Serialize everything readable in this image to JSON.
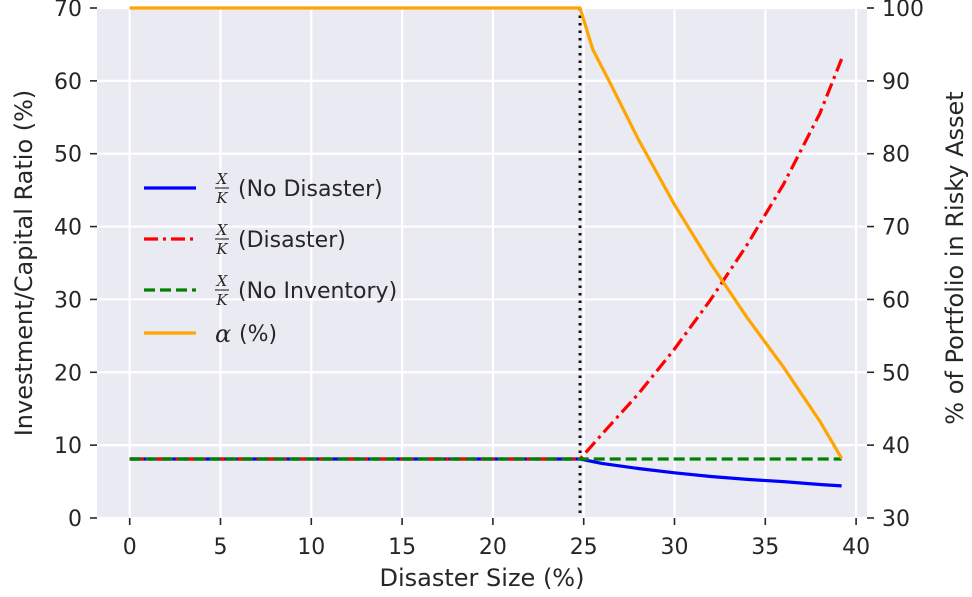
{
  "chart_data": {
    "type": "line",
    "xlabel": "Disaster Size (%)",
    "ylabel_left": "Investment/Capital Ratio (%)",
    "ylabel_right": "% of Portfolio in Risky Asset",
    "xlim": [
      -1.8,
      40.6
    ],
    "ylim_left": [
      0,
      70
    ],
    "ylim_right": [
      30,
      100
    ],
    "xticks": [
      0,
      5,
      10,
      15,
      20,
      25,
      30,
      35,
      40
    ],
    "yticks_left": [
      0,
      10,
      20,
      30,
      40,
      50,
      60,
      70
    ],
    "yticks_right": [
      30,
      40,
      50,
      60,
      70,
      80,
      90,
      100
    ],
    "grid": true,
    "legend_position": "center-left",
    "vline_x": 24.8,
    "series": [
      {
        "legend_fraction": [
          "X",
          "K"
        ],
        "name": "(No Disaster)",
        "axis": "left",
        "color": "#0000ff",
        "style": "solid",
        "x": [
          0,
          5,
          10,
          15,
          20,
          24.8,
          26,
          28,
          30,
          32,
          34,
          36,
          38,
          39.2
        ],
        "y": [
          8.1,
          8.1,
          8.1,
          8.1,
          8.1,
          8.1,
          7.5,
          6.8,
          6.2,
          5.7,
          5.3,
          5.0,
          4.6,
          4.4
        ]
      },
      {
        "legend_fraction": [
          "X",
          "K"
        ],
        "name": "(Disaster)",
        "axis": "left",
        "color": "#ff0000",
        "style": "dashdot",
        "x": [
          0,
          5,
          10,
          15,
          20,
          24.8,
          26,
          28,
          30,
          32,
          34,
          36,
          38,
          39.2
        ],
        "y": [
          8.1,
          8.1,
          8.1,
          8.1,
          8.1,
          8.1,
          11.5,
          17.0,
          23.2,
          30.0,
          37.5,
          45.8,
          55.5,
          63.0
        ]
      },
      {
        "legend_fraction": [
          "X",
          "K"
        ],
        "name": "(No Inventory)",
        "axis": "left",
        "color": "#008000",
        "style": "dashed",
        "x": [
          0,
          39.2
        ],
        "y": [
          8.1,
          8.1
        ]
      },
      {
        "legend_symbol": "α",
        "name": "(%)",
        "axis": "right",
        "color": "#ffa500",
        "style": "solid",
        "x": [
          0,
          5,
          10,
          15,
          20,
          24.8,
          25.5,
          26.5,
          28,
          30,
          32,
          34,
          36,
          38,
          39.2
        ],
        "y": [
          100,
          100,
          100,
          100,
          100,
          100,
          94.3,
          89.5,
          82.0,
          73.0,
          64.9,
          57.5,
          50.7,
          43.3,
          38.2
        ]
      }
    ]
  }
}
